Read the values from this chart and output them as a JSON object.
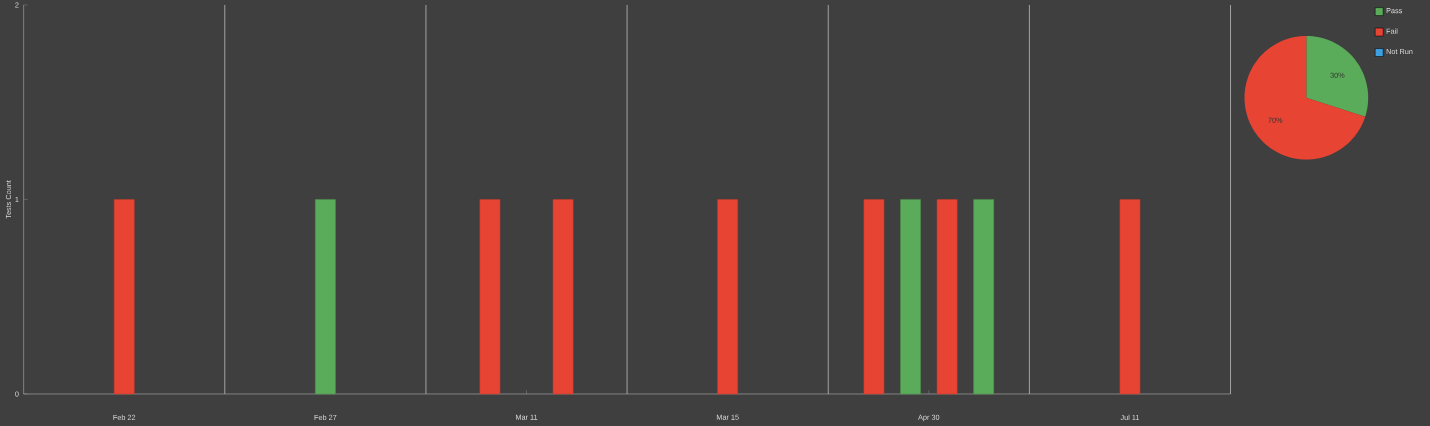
{
  "chart_data": [
    {
      "type": "bar",
      "ylabel": "Tests Count",
      "ylim": [
        0,
        2
      ],
      "yticks": [
        0,
        1,
        2
      ],
      "grid": "x",
      "categories": [
        null,
        null,
        null,
        null,
        null,
        "Feb 22",
        null,
        null,
        null,
        null,
        null,
        null,
        null,
        null,
        null,
        null,
        "Feb 27",
        null,
        null,
        null,
        null,
        null,
        null,
        null,
        null,
        null,
        null,
        "Mar 11",
        null,
        null,
        null,
        null,
        null,
        null,
        null,
        null,
        null,
        null,
        "Mar 15",
        null,
        null,
        null,
        null,
        null,
        null,
        null,
        null,
        null,
        null,
        "Apr 30",
        null,
        null,
        null,
        null,
        null,
        null,
        null,
        null,
        null,
        null,
        "Jul 11",
        null,
        null,
        null,
        null,
        null
      ],
      "series": [
        {
          "color": "#5aac5a",
          "values": [
            null,
            null,
            null,
            null,
            null,
            null,
            null,
            null,
            null,
            null,
            null,
            null,
            null,
            null,
            null,
            null,
            1,
            null,
            null,
            null,
            null,
            null,
            null,
            null,
            null,
            null,
            null,
            null,
            null,
            null,
            null,
            null,
            null,
            null,
            null,
            null,
            null,
            null,
            null,
            null,
            null,
            null,
            null,
            null,
            null,
            null,
            null,
            null,
            1,
            null,
            null,
            null,
            1,
            null,
            null,
            null,
            null,
            null,
            null,
            null,
            null,
            null,
            null,
            null,
            null,
            null
          ]
        },
        {
          "color": "#e84434",
          "values": [
            null,
            null,
            null,
            null,
            null,
            1,
            null,
            null,
            null,
            null,
            null,
            null,
            null,
            null,
            null,
            null,
            null,
            null,
            null,
            null,
            null,
            null,
            null,
            null,
            null,
            1,
            null,
            null,
            null,
            1,
            null,
            null,
            null,
            null,
            null,
            null,
            null,
            null,
            1,
            null,
            null,
            null,
            null,
            null,
            null,
            null,
            1,
            null,
            null,
            null,
            1,
            null,
            null,
            null,
            null,
            null,
            null,
            null,
            null,
            null,
            1,
            null,
            null,
            null,
            null,
            null
          ]
        }
      ]
    },
    {
      "type": "pie",
      "categories": [
        "Pass",
        "Fail",
        "Not Run"
      ],
      "values": [
        30,
        70,
        0
      ],
      "colors": [
        "#5aac5a",
        "#e84434",
        "#3d9ee0"
      ],
      "value_labels": [
        "30%",
        "70%",
        null
      ],
      "legend": "top right"
    }
  ]
}
